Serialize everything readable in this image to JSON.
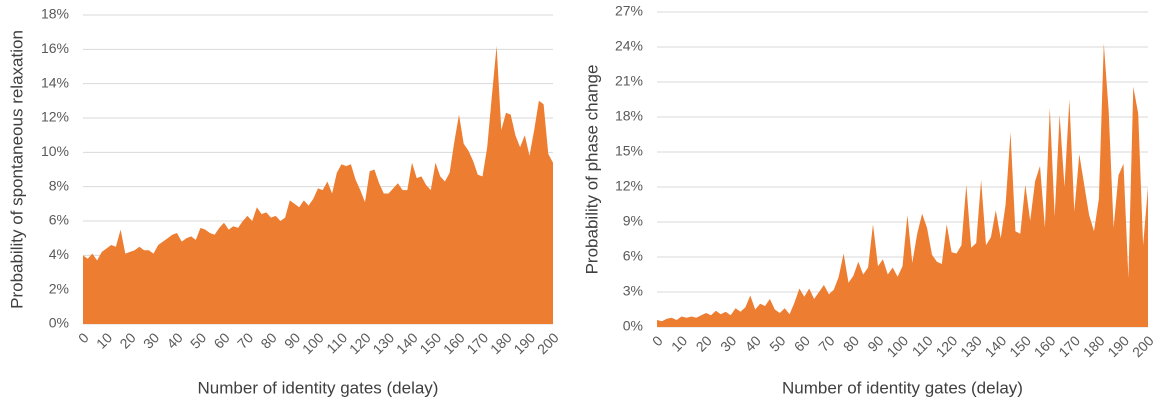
{
  "chart_data": [
    {
      "type": "area",
      "xlabel": "Number of identity gates (delay)",
      "ylabel": "Probability of spontaneous relaxation",
      "x": [
        0,
        2,
        4,
        6,
        8,
        10,
        12,
        14,
        16,
        18,
        20,
        22,
        24,
        26,
        28,
        30,
        32,
        34,
        36,
        38,
        40,
        42,
        44,
        46,
        48,
        50,
        52,
        54,
        56,
        58,
        60,
        62,
        64,
        66,
        68,
        70,
        72,
        74,
        76,
        78,
        80,
        82,
        84,
        86,
        88,
        90,
        92,
        94,
        96,
        98,
        100,
        102,
        104,
        106,
        108,
        110,
        112,
        114,
        116,
        118,
        120,
        122,
        124,
        126,
        128,
        130,
        132,
        134,
        136,
        138,
        140,
        142,
        144,
        146,
        148,
        150,
        152,
        154,
        156,
        158,
        160,
        162,
        164,
        166,
        168,
        170,
        172,
        174,
        176,
        178,
        180,
        182,
        184,
        186,
        188,
        190,
        192,
        194,
        196,
        198,
        200
      ],
      "values": [
        4.0,
        3.8,
        4.1,
        3.7,
        4.2,
        4.4,
        4.6,
        4.5,
        5.5,
        4.1,
        4.2,
        4.3,
        4.5,
        4.3,
        4.3,
        4.1,
        4.6,
        4.8,
        5.0,
        5.2,
        5.3,
        4.8,
        5.0,
        5.1,
        4.9,
        5.6,
        5.5,
        5.3,
        5.2,
        5.6,
        5.9,
        5.5,
        5.7,
        5.6,
        6.0,
        6.3,
        6.0,
        6.8,
        6.4,
        6.5,
        6.2,
        6.3,
        6.0,
        6.2,
        7.2,
        7.0,
        6.8,
        7.2,
        6.9,
        7.3,
        7.9,
        7.8,
        8.3,
        7.6,
        8.8,
        9.3,
        9.2,
        9.3,
        8.4,
        7.8,
        7.1,
        8.9,
        9.0,
        8.2,
        7.6,
        7.6,
        7.9,
        8.2,
        7.8,
        7.8,
        9.4,
        8.5,
        8.6,
        8.1,
        7.8,
        9.4,
        8.6,
        8.3,
        8.8,
        10.6,
        12.2,
        10.5,
        10.1,
        9.5,
        8.7,
        8.6,
        10.3,
        13.3,
        16.2,
        11.3,
        12.3,
        12.2,
        11.0,
        10.3,
        11.0,
        9.8,
        11.3,
        13.0,
        12.8,
        9.9,
        9.4
      ],
      "color": "#ed7d31",
      "xlim": [
        0,
        200
      ],
      "xticks": [
        0,
        10,
        20,
        30,
        40,
        50,
        60,
        70,
        80,
        90,
        100,
        110,
        120,
        130,
        140,
        150,
        160,
        170,
        180,
        190,
        200
      ],
      "ylim": [
        0,
        18
      ],
      "yticks": [
        {
          "value": 0,
          "label": "0%"
        },
        {
          "value": 2,
          "label": "2%"
        },
        {
          "value": 4,
          "label": "4%"
        },
        {
          "value": 6,
          "label": "6%"
        },
        {
          "value": 8,
          "label": "8%"
        },
        {
          "value": 10,
          "label": "10%"
        },
        {
          "value": 12,
          "label": "12%"
        },
        {
          "value": 14,
          "label": "14%"
        },
        {
          "value": 16,
          "label": "16%"
        },
        {
          "value": 18,
          "label": "18%"
        }
      ],
      "grid": true
    },
    {
      "type": "area",
      "xlabel": "Number of identity gates (delay)",
      "ylabel": "Probability of phase change",
      "x": [
        0,
        2,
        4,
        6,
        8,
        10,
        12,
        14,
        16,
        18,
        20,
        22,
        24,
        26,
        28,
        30,
        32,
        34,
        36,
        38,
        40,
        42,
        44,
        46,
        48,
        50,
        52,
        54,
        56,
        58,
        60,
        62,
        64,
        66,
        68,
        70,
        72,
        74,
        76,
        78,
        80,
        82,
        84,
        86,
        88,
        90,
        92,
        94,
        96,
        98,
        100,
        102,
        104,
        106,
        108,
        110,
        112,
        114,
        116,
        118,
        120,
        122,
        124,
        126,
        128,
        130,
        132,
        134,
        136,
        138,
        140,
        142,
        144,
        146,
        148,
        150,
        152,
        154,
        156,
        158,
        160,
        162,
        164,
        166,
        168,
        170,
        172,
        174,
        176,
        178,
        180,
        182,
        184,
        186,
        188,
        190,
        192,
        194,
        196,
        198,
        200
      ],
      "values": [
        0.6,
        0.5,
        0.7,
        0.8,
        0.6,
        0.9,
        0.8,
        0.9,
        0.8,
        1.0,
        1.2,
        1.0,
        1.4,
        1.1,
        1.3,
        1.0,
        1.6,
        1.3,
        1.7,
        2.7,
        1.5,
        2.0,
        1.8,
        2.4,
        1.5,
        1.2,
        1.6,
        1.1,
        2.1,
        3.3,
        2.6,
        3.3,
        2.4,
        3.0,
        3.6,
        2.8,
        3.2,
        4.3,
        6.3,
        3.8,
        4.4,
        5.6,
        4.5,
        5.1,
        8.8,
        5.2,
        5.8,
        4.5,
        5.1,
        4.3,
        5.2,
        9.6,
        5.5,
        8.0,
        9.7,
        8.5,
        6.2,
        5.6,
        5.4,
        8.8,
        6.4,
        6.3,
        7.0,
        12.2,
        6.8,
        7.2,
        12.6,
        7.0,
        7.7,
        10.0,
        7.6,
        10.5,
        16.7,
        8.2,
        8.0,
        12.2,
        9.1,
        12.5,
        13.8,
        8.5,
        18.8,
        9.5,
        18.2,
        12.0,
        19.5,
        9.9,
        14.8,
        12.2,
        9.6,
        8.2,
        11.0,
        24.3,
        18.5,
        8.5,
        13.0,
        14.0,
        4.2,
        20.6,
        18.3,
        7.0,
        12.0
      ],
      "color": "#ed7d31",
      "xlim": [
        0,
        200
      ],
      "xticks": [
        0,
        10,
        20,
        30,
        40,
        50,
        60,
        70,
        80,
        90,
        100,
        110,
        120,
        130,
        140,
        150,
        160,
        170,
        180,
        190,
        200
      ],
      "ylim": [
        0,
        27
      ],
      "yticks": [
        {
          "value": 0,
          "label": "0%"
        },
        {
          "value": 3,
          "label": "3%"
        },
        {
          "value": 6,
          "label": "6%"
        },
        {
          "value": 9,
          "label": "9%"
        },
        {
          "value": 12,
          "label": "12%"
        },
        {
          "value": 15,
          "label": "15%"
        },
        {
          "value": 18,
          "label": "18%"
        },
        {
          "value": 21,
          "label": "21%"
        },
        {
          "value": 24,
          "label": "24%"
        },
        {
          "value": 27,
          "label": "27%"
        }
      ],
      "grid": true
    }
  ]
}
